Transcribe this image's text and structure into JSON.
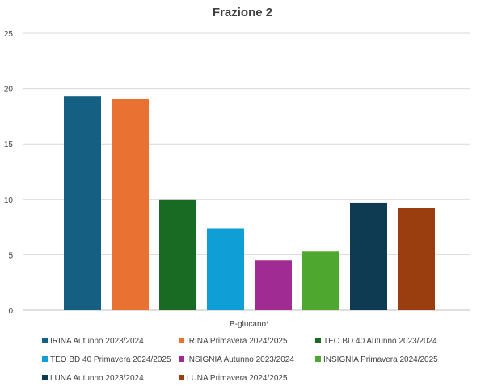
{
  "chart_data": {
    "type": "bar",
    "title": "Frazione 2",
    "categories": [
      "B-glucano*"
    ],
    "xlabel": "",
    "ylabel": "",
    "ylim": [
      0,
      25
    ],
    "yticks": [
      0,
      5,
      10,
      15,
      20,
      25
    ],
    "grid": true,
    "legend_position": "bottom",
    "series": [
      {
        "name": "IRINA Autunno 2023/2024",
        "values": [
          19.3
        ],
        "color": "#156082"
      },
      {
        "name": "IRINA Primavera 2024/2025",
        "values": [
          19.1
        ],
        "color": "#E97132"
      },
      {
        "name": "TEO BD 40 Autunno 2023/2024",
        "values": [
          10.0
        ],
        "color": "#196B24"
      },
      {
        "name": "TEO BD 40 Primavera 2024/2025",
        "values": [
          7.4
        ],
        "color": "#0F9ED5"
      },
      {
        "name": "INSIGNIA Autunno 2023/2024",
        "values": [
          4.5
        ],
        "color": "#A02B93"
      },
      {
        "name": "INSIGNIA Primavera 2024/2025",
        "values": [
          5.3
        ],
        "color": "#4EA72E"
      },
      {
        "name": "LUNA Autunno 2023/2024",
        "values": [
          9.7
        ],
        "color": "#0E3A52"
      },
      {
        "name": "LUNA Primavera 2024/2025",
        "values": [
          9.2
        ],
        "color": "#9A3E10"
      }
    ]
  }
}
